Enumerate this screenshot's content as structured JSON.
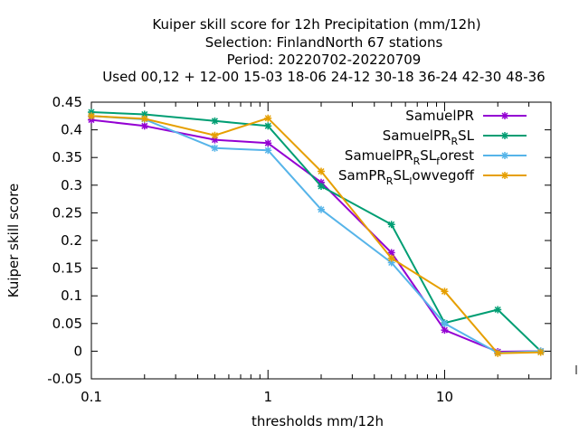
{
  "chart_data": {
    "type": "line",
    "title_lines": [
      "Kuiper skill score  for 12h Precipitation (mm/12h)",
      "Selection: FinlandNorth     67 stations",
      "Period: 20220702-20220709",
      "Used  00,12  + 12-00 15-03 18-06 24-12 30-18 36-24 42-30 48-36"
    ],
    "xlabel": "thresholds mm/12h",
    "ylabel": "Kuiper skill score",
    "x_scale": "log",
    "xlim": [
      0.1,
      40
    ],
    "ylim": [
      -0.05,
      0.45
    ],
    "x_ticks": [
      0.1,
      1,
      10
    ],
    "x_tick_labels": [
      "0.1",
      "1",
      "10"
    ],
    "y_ticks": [
      -0.05,
      0,
      0.05,
      0.1,
      0.15,
      0.2,
      0.25,
      0.3,
      0.35,
      0.4,
      0.45
    ],
    "y_tick_labels": [
      "-0.05",
      "0",
      "0.05",
      "0.1",
      "0.15",
      "0.2",
      "0.25",
      "0.3",
      "0.35",
      "0.4",
      "0.45"
    ],
    "grid": false,
    "legend_position": "top-right",
    "x": [
      0.1,
      0.2,
      0.5,
      1,
      2,
      5,
      10,
      20,
      35
    ],
    "series": [
      {
        "name": "SamuelPR",
        "legend": {
          "base": "SamuelPR",
          "sub1": "",
          "mid": "",
          "sub2": "",
          "tail": ""
        },
        "color": "#9400d3",
        "values": [
          0.418,
          0.407,
          0.382,
          0.376,
          0.305,
          0.178,
          0.038,
          -0.001,
          0.0
        ]
      },
      {
        "name": "SamuelPR_RSL",
        "legend": {
          "base": "SamuelPR",
          "sub1": "R",
          "mid": "SL",
          "sub2": "",
          "tail": ""
        },
        "color": "#009e73",
        "values": [
          0.432,
          0.428,
          0.416,
          0.407,
          0.298,
          0.229,
          0.051,
          0.075,
          0.0
        ]
      },
      {
        "name": "SamuelPR_RSL_forest",
        "legend": {
          "base": "SamuelPR",
          "sub1": "R",
          "mid": "SL",
          "sub2": "f",
          "tail": "orest"
        },
        "color": "#56b4e9",
        "values": [
          0.425,
          0.419,
          0.367,
          0.363,
          0.256,
          0.16,
          0.05,
          -0.003,
          0.0
        ]
      },
      {
        "name": "SamPR_RSL_lowvegoff",
        "legend": {
          "base": "SamPR",
          "sub1": "R",
          "mid": "SL",
          "sub2": "l",
          "tail": "owvegoff"
        },
        "color": "#e69f00",
        "values": [
          0.425,
          0.42,
          0.39,
          0.421,
          0.325,
          0.168,
          0.108,
          -0.004,
          -0.002
        ]
      }
    ]
  }
}
